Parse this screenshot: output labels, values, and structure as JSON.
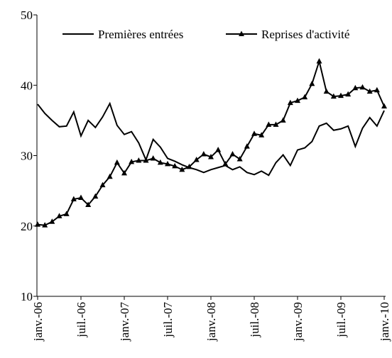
{
  "chart_data": {
    "type": "line",
    "categories": [
      "janv.-06",
      null,
      null,
      null,
      null,
      null,
      "juil.-06",
      null,
      null,
      null,
      null,
      null,
      "janv.-07",
      null,
      null,
      null,
      null,
      null,
      "juil.-07",
      null,
      null,
      null,
      null,
      null,
      "janv.-08",
      null,
      null,
      null,
      null,
      null,
      "juil.-08",
      null,
      null,
      null,
      null,
      null,
      "janv.-09",
      null,
      null,
      null,
      null,
      null,
      "juil.-09",
      null,
      null,
      null,
      null,
      null,
      "janv.-10"
    ],
    "series": [
      {
        "name": "Premières entrées",
        "color": "#000000",
        "marker": "none",
        "values": [
          37.3,
          36.0,
          35.0,
          34.1,
          34.2,
          36.2,
          32.8,
          35.0,
          34.0,
          35.5,
          37.4,
          34.3,
          33.0,
          33.4,
          31.8,
          29.4,
          32.3,
          31.2,
          29.6,
          29.2,
          28.7,
          28.3,
          28.0,
          27.6,
          28.0,
          28.3,
          28.6,
          28.0,
          28.4,
          27.6,
          27.3,
          27.8,
          27.2,
          29.0,
          30.1,
          28.6,
          30.8,
          31.1,
          32.0,
          34.2,
          34.6,
          33.6,
          33.8,
          34.2,
          31.3,
          33.9,
          35.4,
          34.2,
          36.4
        ]
      },
      {
        "name": "Reprises d'activité",
        "color": "#000000",
        "marker": "triangle",
        "values": [
          20.2,
          20.1,
          20.6,
          21.4,
          21.7,
          23.8,
          24.0,
          23.0,
          24.2,
          25.8,
          27.0,
          29.0,
          27.5,
          29.1,
          29.3,
          29.3,
          29.6,
          29.0,
          28.8,
          28.5,
          28.0,
          28.4,
          29.4,
          30.2,
          29.8,
          30.8,
          28.8,
          30.2,
          29.5,
          31.3,
          33.1,
          32.9,
          34.4,
          34.4,
          35.0,
          37.5,
          37.8,
          38.3,
          40.2,
          43.4,
          39.1,
          38.4,
          38.5,
          38.7,
          39.6,
          39.7,
          39.1,
          39.3,
          37.0
        ]
      }
    ],
    "ylim": [
      10,
      50
    ],
    "yticks": [
      10,
      20,
      30,
      40,
      50
    ],
    "grid": false,
    "legend": "top"
  }
}
